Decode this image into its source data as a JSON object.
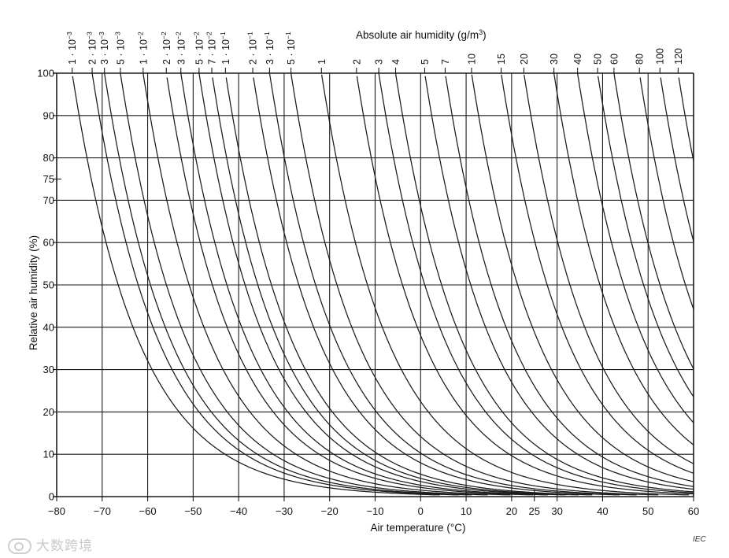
{
  "chart_data": {
    "type": "line",
    "title": "",
    "xlabel": "Air temperature  (°C)",
    "ylabel": "Relative air humidity  (%)",
    "top_axis_title_main": "Absolute air humidity  (g/m",
    "top_axis_title_sup": "3",
    "top_axis_title_end": ")",
    "xlim": [
      -80,
      60
    ],
    "ylim": [
      0,
      100
    ],
    "x_ticks": [
      -80,
      -70,
      -60,
      -50,
      -40,
      -30,
      -20,
      -10,
      0,
      10,
      20,
      25,
      30,
      40,
      50,
      60
    ],
    "x_tick_labels": [
      "−80",
      "−70",
      "−60",
      "−50",
      "−40",
      "−30",
      "−20",
      "−10",
      "0",
      "10",
      "20",
      "25",
      "30",
      "40",
      "50",
      "60"
    ],
    "y_ticks": [
      0,
      10,
      20,
      30,
      40,
      50,
      60,
      70,
      75,
      80,
      90,
      100
    ],
    "y_tick_labels": [
      "0",
      "10",
      "20",
      "30",
      "40",
      "50",
      "60",
      "70",
      "75",
      "80",
      "90",
      "100"
    ],
    "grid": true,
    "source": "IEC",
    "series": [
      {
        "name": "1 · 10⁻³",
        "coef": "1 ·",
        "exp": "−3",
        "value": 0.001,
        "t_sat": -76.6
      },
      {
        "name": "2 · 10⁻³",
        "coef": "2 ·",
        "exp": "−3",
        "value": 0.002,
        "t_sat": -72.2
      },
      {
        "name": "3 · 10⁻³",
        "coef": "3 ·",
        "exp": "−3",
        "value": 0.003,
        "t_sat": -69.5
      },
      {
        "name": "5 · 10⁻³",
        "coef": "5 ·",
        "exp": "−3",
        "value": 0.005,
        "t_sat": -66.0
      },
      {
        "name": "1 · 10⁻²",
        "coef": "1 ·",
        "exp": "−2",
        "value": 0.01,
        "t_sat": -61.0
      },
      {
        "name": "2 · 10⁻²",
        "coef": "2 ·",
        "exp": "−2",
        "value": 0.02,
        "t_sat": -55.9
      },
      {
        "name": "3 · 10⁻²",
        "coef": "3 ·",
        "exp": "−2",
        "value": 0.03,
        "t_sat": -52.7
      },
      {
        "name": "5 · 10⁻²",
        "coef": "5 ·",
        "exp": "−2",
        "value": 0.05,
        "t_sat": -48.7
      },
      {
        "name": "7 · 10⁻²",
        "coef": "7 ·",
        "exp": "−2",
        "value": 0.07,
        "t_sat": -45.9
      },
      {
        "name": "1 · 10⁻¹",
        "coef": "1 ·",
        "exp": "−1",
        "value": 0.1,
        "t_sat": -42.9
      },
      {
        "name": "2 · 10⁻¹",
        "coef": "2 ·",
        "exp": "−1",
        "value": 0.2,
        "t_sat": -36.9
      },
      {
        "name": "3 · 10⁻¹",
        "coef": "3 ·",
        "exp": "−1",
        "value": 0.3,
        "t_sat": -33.2
      },
      {
        "name": "5 · 10⁻¹",
        "coef": "5 ·",
        "exp": "−1",
        "value": 0.5,
        "t_sat": -28.5
      },
      {
        "name": "1",
        "coef": "1",
        "exp": "",
        "value": 1,
        "t_sat": -21.8
      },
      {
        "name": "2",
        "coef": "2",
        "exp": "",
        "value": 2,
        "t_sat": -14.1
      },
      {
        "name": "3",
        "coef": "3",
        "exp": "",
        "value": 3,
        "t_sat": -9.2
      },
      {
        "name": "4",
        "coef": "4",
        "exp": "",
        "value": 4,
        "t_sat": -5.5
      },
      {
        "name": "5",
        "coef": "5",
        "exp": "",
        "value": 5,
        "t_sat": 0.9
      },
      {
        "name": "7",
        "coef": "7",
        "exp": "",
        "value": 7,
        "t_sat": 5.4
      },
      {
        "name": "10",
        "coef": "10",
        "exp": "",
        "value": 10,
        "t_sat": 11.2
      },
      {
        "name": "15",
        "coef": "15",
        "exp": "",
        "value": 15,
        "t_sat": 17.7
      },
      {
        "name": "20",
        "coef": "20",
        "exp": "",
        "value": 20,
        "t_sat": 22.7
      },
      {
        "name": "30",
        "coef": "30",
        "exp": "",
        "value": 30,
        "t_sat": 29.3
      },
      {
        "name": "40",
        "coef": "40",
        "exp": "",
        "value": 40,
        "t_sat": 34.5
      },
      {
        "name": "50",
        "coef": "50",
        "exp": "",
        "value": 50,
        "t_sat": 38.9
      },
      {
        "name": "60",
        "coef": "60",
        "exp": "",
        "value": 60,
        "t_sat": 42.5
      },
      {
        "name": "80",
        "coef": "80",
        "exp": "",
        "value": 80,
        "t_sat": 48.1
      },
      {
        "name": "100",
        "coef": "100",
        "exp": "",
        "value": 100,
        "t_sat": 52.6
      },
      {
        "name": "120",
        "coef": "120",
        "exp": "",
        "value": 120,
        "t_sat": 56.6
      }
    ]
  },
  "watermark_text": "大数跨境",
  "colors": {
    "line": "#1a1a1a",
    "background": "#ffffff",
    "watermark": "#c9c9c9"
  }
}
